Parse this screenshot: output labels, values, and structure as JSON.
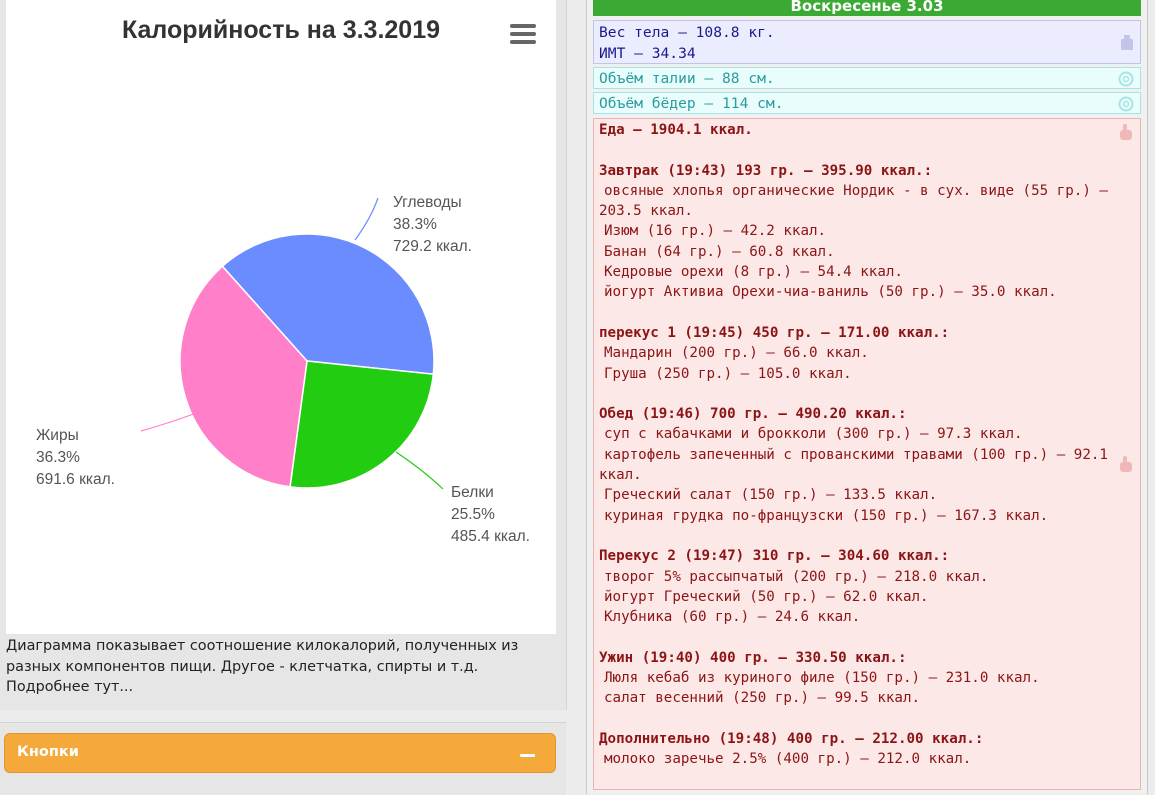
{
  "chart": {
    "title": "Калорийность на 3.3.2019",
    "menu_icon": "hamburger-menu-icon",
    "caption_lines": [
      "Диаграмма показывает соотношение килокалорий, полученных из",
      "разных компонентов пищи. Другое - клетчатка, спирты и т.д.",
      "Подробнее тут..."
    ]
  },
  "chart_data": {
    "type": "pie",
    "title": "Калорийность на 3.3.2019",
    "slices": [
      {
        "name": "Углеводы",
        "percent": "38.3%",
        "kcal": "729.2 ккал.",
        "value": 38.3,
        "color": "#6b8cff"
      },
      {
        "name": "Белки",
        "percent": "25.5%",
        "kcal": "485.4 ккал.",
        "value": 25.5,
        "color": "#22cc11"
      },
      {
        "name": "Жиры",
        "percent": "36.3%",
        "kcal": "691.6 ккал.",
        "value": 36.3,
        "color": "#ff80c8"
      }
    ]
  },
  "buttons_panel": {
    "label": "Кнопки",
    "collapse_icon": "minus-icon"
  },
  "day": {
    "header": "Воскресенье 3.03",
    "weight_line": "Вес тела — 108.8 кг.",
    "bmi_line": "ИМТ — 34.34",
    "weight_icon": "scale-icon",
    "waist_line": "Объём талии — 88 см.",
    "hips_line": "Объём бёдер — 114 см.",
    "measure_icon": "tape-measure-icon",
    "food_icon": "hand-pointer-icon",
    "food_lines": [
      {
        "text": "Еда — 1904.1 ккал.",
        "kind": "total"
      },
      {
        "text": "",
        "kind": "gap"
      },
      {
        "text": "Завтрак (19:43) 193 гр. — 395.90 ккал.:",
        "kind": "meal"
      },
      {
        "text": "овсяные хлопья органические Нордик - в сух. виде (55 гр.) —",
        "kind": "item"
      },
      {
        "text": "203.5 ккал.",
        "kind": "plain"
      },
      {
        "text": "Изюм (16 гр.) — 42.2 ккал.",
        "kind": "item"
      },
      {
        "text": "Банан (64 гр.) — 60.8 ккал.",
        "kind": "item"
      },
      {
        "text": "Кедровые орехи (8 гр.) — 54.4 ккал.",
        "kind": "item"
      },
      {
        "text": "йогурт Активиа Орехи-чиа-ваниль (50 гр.) — 35.0 ккал.",
        "kind": "item"
      },
      {
        "text": "",
        "kind": "gap"
      },
      {
        "text": "перекус 1 (19:45) 450 гр. — 171.00 ккал.:",
        "kind": "meal"
      },
      {
        "text": "Мандарин (200 гр.) — 66.0 ккал.",
        "kind": "item"
      },
      {
        "text": "Груша (250 гр.) — 105.0 ккал.",
        "kind": "item"
      },
      {
        "text": "",
        "kind": "gap"
      },
      {
        "text": "Обед (19:46) 700 гр. — 490.20 ккал.:",
        "kind": "meal"
      },
      {
        "text": "суп с кабачками и брокколи (300 гр.) — 97.3 ккал.",
        "kind": "item"
      },
      {
        "text": "картофель запеченный с прованскими травами (100 гр.) — 92.1",
        "kind": "item"
      },
      {
        "text": "ккал.",
        "kind": "plain"
      },
      {
        "text": "Греческий салат (150 гр.) — 133.5 ккал.",
        "kind": "item"
      },
      {
        "text": "куриная грудка по-французски (150 гр.) — 167.3 ккал.",
        "kind": "item"
      },
      {
        "text": "",
        "kind": "gap"
      },
      {
        "text": "Перекус 2 (19:47) 310 гр. — 304.60 ккал.:",
        "kind": "meal"
      },
      {
        "text": "творог 5% рассыпчатый (200 гр.) — 218.0 ккал.",
        "kind": "item"
      },
      {
        "text": "йогурт Греческий (50 гр.) — 62.0 ккал.",
        "kind": "item"
      },
      {
        "text": "Клубника (60 гр.) — 24.6 ккал.",
        "kind": "item"
      },
      {
        "text": "",
        "kind": "gap"
      },
      {
        "text": "Ужин (19:40) 400 гр. — 330.50 ккал.:",
        "kind": "meal"
      },
      {
        "text": "Люля кебаб из куриного филе (150 гр.) — 231.0 ккал.",
        "kind": "item"
      },
      {
        "text": "салат весенний (250 гр.) — 99.5 ккал.",
        "kind": "item"
      },
      {
        "text": "",
        "kind": "gap"
      },
      {
        "text": "Дополнительно (19:48) 400 гр. — 212.00 ккал.:",
        "kind": "meal"
      },
      {
        "text": "молоко заречье 2.5% (400 гр.) — 212.0 ккал.",
        "kind": "item"
      }
    ]
  }
}
